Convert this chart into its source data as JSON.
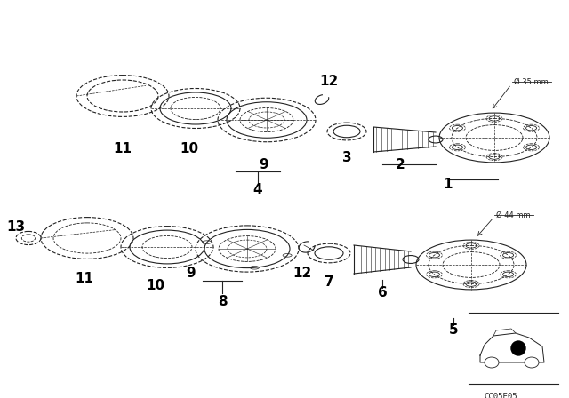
{
  "bg_color": "#ffffff",
  "part_color": "#222222",
  "label_color": "#000000",
  "code": "CC05E05",
  "diameter_top": "Ø 35 mm",
  "diameter_bottom": "Ø 44 mm",
  "figsize": [
    6.4,
    4.48
  ],
  "dpi": 100
}
